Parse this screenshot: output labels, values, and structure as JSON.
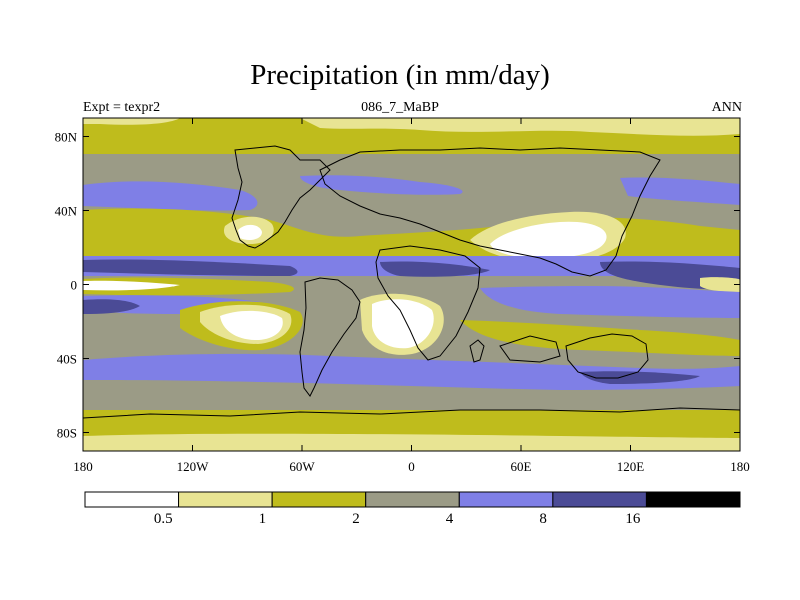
{
  "title": "Precipitation (in mm/day)",
  "subtitle_left": "Expt = texpr2",
  "subtitle_center": "086_7_MaBP",
  "subtitle_right": "ANN",
  "map": {
    "projection": "cylindrical-equidistant",
    "lon_range": [
      -180,
      180
    ],
    "lat_range": [
      -90,
      90
    ],
    "x_ticks": [
      {
        "value": -180,
        "label": "180"
      },
      {
        "value": -120,
        "label": "120W"
      },
      {
        "value": -60,
        "label": "60W"
      },
      {
        "value": 0,
        "label": "0"
      },
      {
        "value": 60,
        "label": "60E"
      },
      {
        "value": 120,
        "label": "120E"
      },
      {
        "value": 180,
        "label": "180"
      }
    ],
    "y_ticks": [
      {
        "value": 80,
        "label": "80N"
      },
      {
        "value": 40,
        "label": "40N"
      },
      {
        "value": 0,
        "label": "0"
      },
      {
        "value": -40,
        "label": "40S"
      },
      {
        "value": -80,
        "label": "80S"
      }
    ]
  },
  "colorbar": {
    "levels": [
      "0.5",
      "1",
      "2",
      "4",
      "8",
      "16"
    ],
    "colors": [
      "#ffffff",
      "#e8e493",
      "#bfbc1c",
      "#9b9b86",
      "#7f7fe6",
      "#4b4b96",
      "#000000"
    ]
  },
  "colors": {
    "c1": "#e8e493",
    "c2": "#bfbc1c",
    "c3": "#9b9b86",
    "c4": "#7f7fe6",
    "c5": "#4b4b96"
  }
}
